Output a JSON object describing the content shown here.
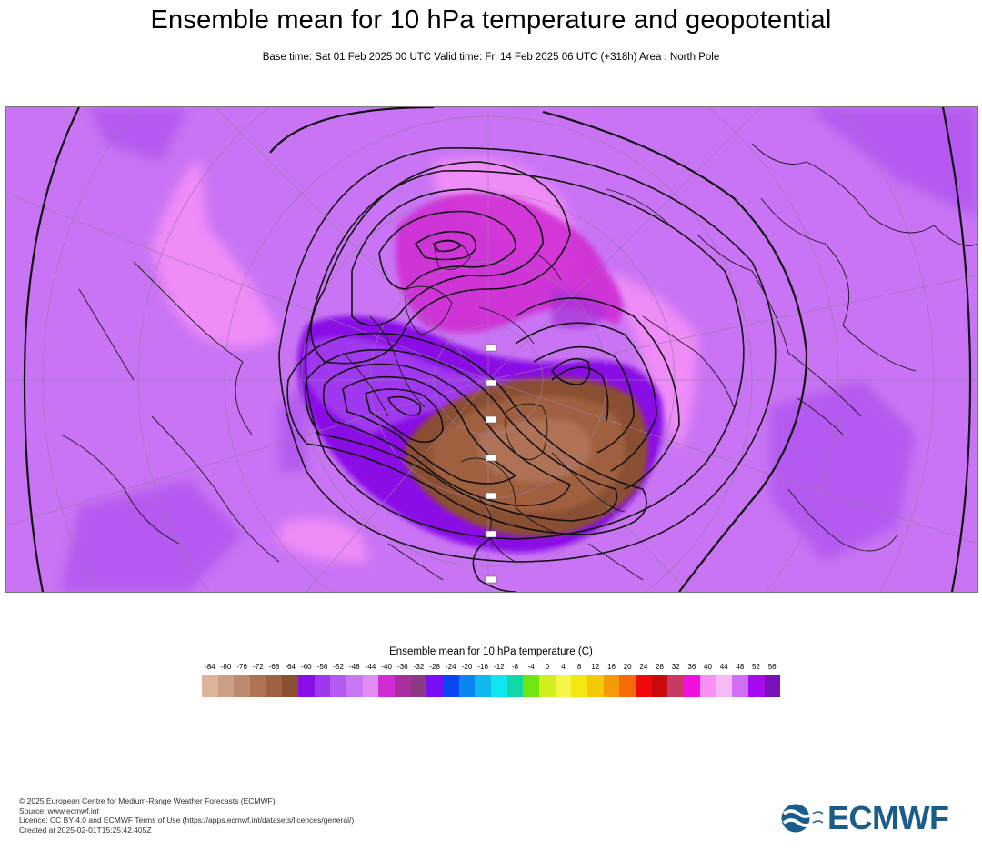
{
  "header": {
    "title": "Ensemble mean for 10 hPa temperature and geopotential",
    "subtitle": "Base time: Sat 01 Feb 2025 00 UTC Valid time: Fri 14 Feb 2025 06 UTC (+318h) Area : North Pole"
  },
  "map": {
    "projection": "polar stereographic",
    "area": "North Pole",
    "fields": [
      "10 hPa temperature (shaded)",
      "10 hPa geopotential (contours)"
    ],
    "background_color": "#c874f4",
    "contour_color": "#000000"
  },
  "legend": {
    "title": "Ensemble mean for 10 hPa temperature (C)",
    "ticks": [
      "-84",
      "-80",
      "-76",
      "-72",
      "-68",
      "-64",
      "-60",
      "-56",
      "-52",
      "-48",
      "-44",
      "-40",
      "-36",
      "-32",
      "-28",
      "-24",
      "-20",
      "-16",
      "-12",
      "-8",
      "-4",
      "0",
      "4",
      "8",
      "12",
      "16",
      "20",
      "24",
      "28",
      "32",
      "36",
      "40",
      "44",
      "48",
      "52",
      "56"
    ],
    "colors": [
      "#dcb49a",
      "#cc9e86",
      "#bd8a70",
      "#b07255",
      "#a0603f",
      "#8a4f30",
      "#8a0ee6",
      "#a038f0",
      "#b45af0",
      "#c878f4",
      "#e28cf6",
      "#d02ed4",
      "#a8309e",
      "#8c3a84",
      "#7a0ef4",
      "#0a46f0",
      "#0a86f0",
      "#10b8f0",
      "#10e6f0",
      "#10d8a8",
      "#70e610",
      "#d2f020",
      "#f6f646",
      "#f6e610",
      "#f6c80a",
      "#f69a0a",
      "#f66a0a",
      "#f00a0a",
      "#c80a0a",
      "#c83a64",
      "#f010e0",
      "#fa90f4",
      "#f6baf6",
      "#d26ef6",
      "#a80af0",
      "#7a10b8"
    ]
  },
  "footer": {
    "lines": [
      "© 2025 European Centre for Medium-Range Weather Forecasts (ECMWF)",
      "Source: www.ecmwf.int",
      "Licence: CC BY 4.0 and ECMWF Terms of Use (https://apps.ecmwf.int/datasets/licences/general/)",
      "Created at 2025-02-01T15:25:42.405Z"
    ]
  },
  "logo": {
    "text": "ECMWF",
    "color": "#1a5d8a"
  }
}
